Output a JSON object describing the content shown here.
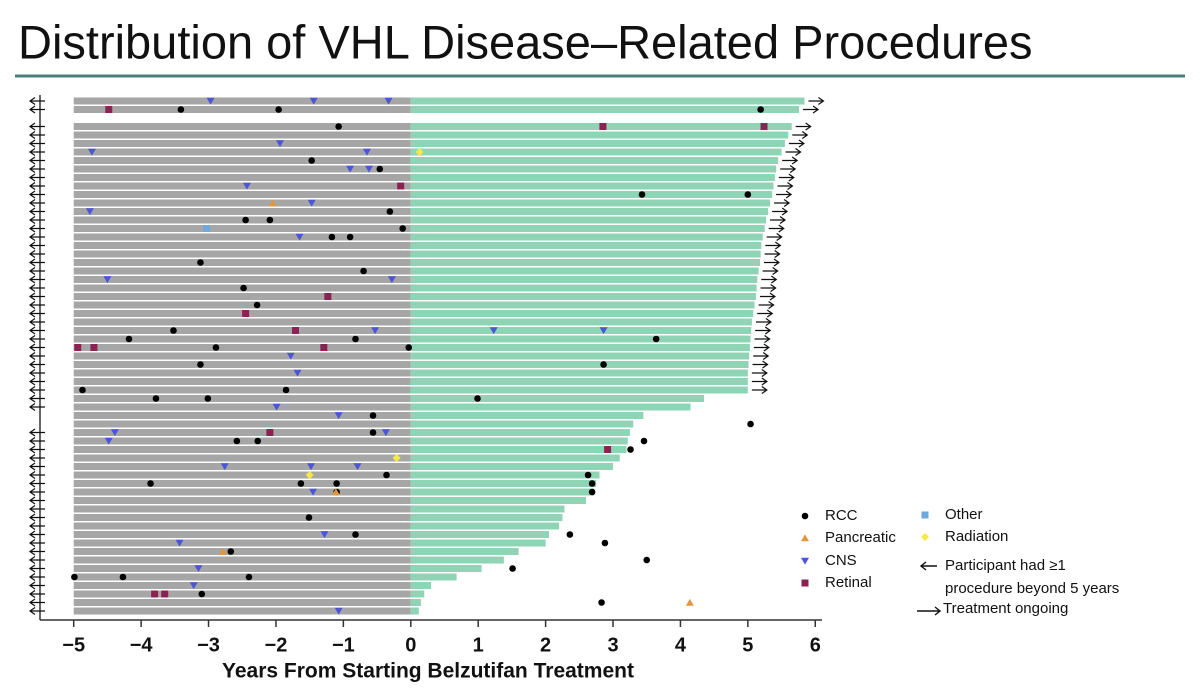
{
  "chart_data": {
    "type": "swimmer",
    "title": "Distribution of VHL Disease–Related Procedures",
    "xlabel": "Years From Starting Belzutifan Treatment",
    "xlim": [
      -5.5,
      6.1
    ],
    "xticks": [
      {
        "value": -5,
        "label": "−5"
      },
      {
        "value": -4,
        "label": "−4"
      },
      {
        "value": -3,
        "label": "−3"
      },
      {
        "value": -2,
        "label": "−2"
      },
      {
        "value": -1,
        "label": "−1"
      },
      0,
      1,
      2,
      3,
      4,
      5,
      6
    ],
    "pre_start": -5,
    "pre_color": "#a6a6a6",
    "post_color": "#8fd4b4",
    "ends": [
      5.84,
      5.76,
      null,
      5.65,
      5.6,
      5.55,
      5.5,
      5.45,
      5.42,
      5.4,
      5.38,
      5.36,
      5.33,
      5.3,
      5.27,
      5.25,
      5.22,
      5.2,
      5.19,
      5.18,
      5.16,
      5.14,
      5.13,
      5.12,
      5.1,
      5.08,
      5.06,
      5.05,
      5.04,
      5.03,
      5.02,
      5.01,
      5.0,
      5.0,
      5.0,
      4.35,
      4.15,
      3.45,
      3.3,
      3.25,
      3.22,
      3.2,
      3.1,
      3.0,
      2.8,
      2.75,
      2.72,
      2.6,
      2.28,
      2.25,
      2.2,
      2.05,
      2.0,
      1.6,
      1.38,
      1.05,
      0.68,
      0.3,
      0.2,
      0.15,
      0.12
    ],
    "beyond_5_years": [
      true,
      true,
      false,
      true,
      true,
      true,
      true,
      true,
      true,
      true,
      true,
      true,
      true,
      true,
      true,
      true,
      true,
      true,
      true,
      true,
      true,
      true,
      true,
      true,
      true,
      true,
      true,
      true,
      true,
      true,
      true,
      true,
      true,
      true,
      true,
      true,
      true,
      false,
      false,
      true,
      true,
      true,
      true,
      true,
      true,
      true,
      true,
      true,
      true,
      true,
      true,
      true,
      true,
      true,
      true,
      true,
      true,
      true,
      true,
      true,
      true
    ],
    "ongoing": [
      true,
      true,
      false,
      true,
      true,
      true,
      true,
      true,
      true,
      true,
      true,
      true,
      true,
      true,
      true,
      true,
      true,
      true,
      true,
      true,
      true,
      true,
      true,
      true,
      true,
      true,
      true,
      true,
      true,
      true,
      true,
      true,
      true,
      true,
      true,
      false,
      false,
      false,
      false,
      false,
      false,
      false,
      false,
      false,
      false,
      false,
      false,
      false,
      false,
      false,
      false,
      false,
      false,
      false,
      false,
      false,
      false,
      false,
      false,
      false,
      false
    ],
    "series": [
      {
        "name": "RCC",
        "color": "#000000",
        "marker": "circle",
        "x": [
          -3.41,
          -1.96,
          5.19,
          -1.07,
          -1.47,
          -0.46,
          3.43,
          5.0,
          -0.31,
          -2.45,
          -2.09,
          -0.12,
          -1.17,
          -0.9,
          -3.12,
          -0.7,
          -2.48,
          -2.28,
          -3.52,
          -4.18,
          -0.82,
          3.64,
          -2.89,
          -0.03,
          -3.12,
          2.86,
          -4.87,
          -1.85,
          -3.78,
          -3.01,
          0.99,
          -0.56,
          5.04,
          -0.56,
          -2.58,
          -2.27,
          3.46,
          3.26,
          -0.36,
          2.63,
          -3.86,
          -1.63,
          -1.1,
          2.69,
          -1.1,
          2.69,
          -1.51,
          -0.82,
          2.36,
          2.88,
          -2.67,
          3.5,
          1.51,
          -4.99,
          -4.27,
          -2.4,
          -3.1,
          2.83
        ],
        "row": [
          1,
          1,
          1,
          3,
          7,
          8,
          11,
          11,
          13,
          14,
          14,
          15,
          16,
          16,
          19,
          20,
          22,
          24,
          27,
          28,
          28,
          28,
          29,
          29,
          31,
          31,
          34,
          34,
          35,
          35,
          35,
          37,
          38,
          39,
          40,
          40,
          40,
          41,
          44,
          44,
          45,
          45,
          45,
          45,
          46,
          46,
          49,
          51,
          51,
          52,
          53,
          54,
          55,
          56,
          56,
          56,
          58,
          59
        ]
      },
      {
        "name": "Pancreatic",
        "color": "#e0963c",
        "marker": "triangle-up",
        "x": [
          -2.05,
          -1.11,
          -2.79,
          4.14
        ],
        "row": [
          12,
          46,
          53,
          59
        ]
      },
      {
        "name": "CNS",
        "color": "#4b55d6",
        "marker": "triangle-down",
        "x": [
          -2.97,
          -1.44,
          -0.33,
          -1.94,
          -4.73,
          -0.65,
          -0.9,
          -0.62,
          -2.43,
          -1.47,
          -4.76,
          -1.65,
          -4.5,
          -0.28,
          -0.53,
          1.23,
          2.86,
          -1.78,
          -1.68,
          -1.99,
          -1.07,
          -4.39,
          -0.37,
          -4.48,
          -2.76,
          -1.48,
          -0.79,
          -1.45,
          -1.28,
          -3.43,
          -3.15,
          -3.22,
          -1.07
        ],
        "row": [
          0,
          0,
          0,
          5,
          6,
          6,
          8,
          8,
          10,
          12,
          13,
          16,
          21,
          21,
          27,
          27,
          27,
          30,
          32,
          36,
          37,
          39,
          39,
          40,
          43,
          43,
          43,
          46,
          51,
          52,
          55,
          57,
          60
        ]
      },
      {
        "name": "Retinal",
        "color": "#8b2252",
        "marker": "square",
        "x": [
          -4.48,
          2.85,
          5.24,
          -0.15,
          -1.23,
          -2.45,
          -1.71,
          -4.94,
          -4.7,
          -1.29,
          -2.09,
          2.92,
          -3.8,
          -3.65
        ],
        "row": [
          1,
          3,
          3,
          10,
          23,
          25,
          27,
          29,
          29,
          29,
          39,
          41,
          58,
          58
        ]
      },
      {
        "name": "Other",
        "color": "#6fa8dc",
        "marker": "square",
        "x": [
          -3.03
        ],
        "row": [
          15
        ]
      },
      {
        "name": "Radiation",
        "color": "#f5e94a",
        "marker": "diamond",
        "x": [
          0.13,
          -0.21,
          -1.5
        ],
        "row": [
          6,
          42,
          44
        ]
      }
    ],
    "arrow_legend": {
      "left": [
        "Participant had ≥1",
        "procedure beyond 5 years"
      ],
      "right": "Treatment ongoing"
    }
  }
}
